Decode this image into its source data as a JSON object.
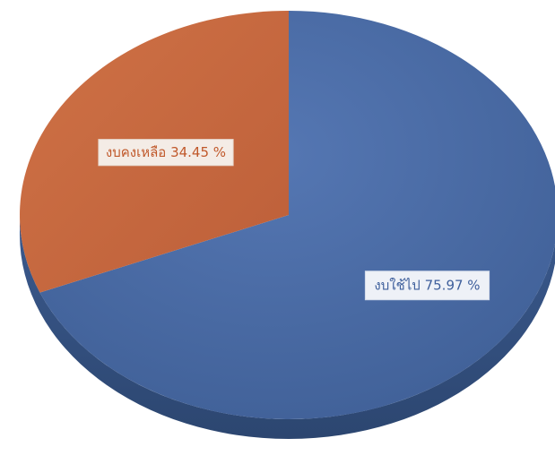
{
  "chart_data": {
    "type": "pie",
    "style": "3d",
    "title": "",
    "slices": [
      {
        "label": "งบใช้ไป 75.97 %",
        "value": 75.97,
        "color": "#4a6ca7"
      },
      {
        "label": "งบคงเหลือ 34.45 %",
        "value": 34.45,
        "color": "#c86a42"
      }
    ],
    "legend": "none"
  }
}
